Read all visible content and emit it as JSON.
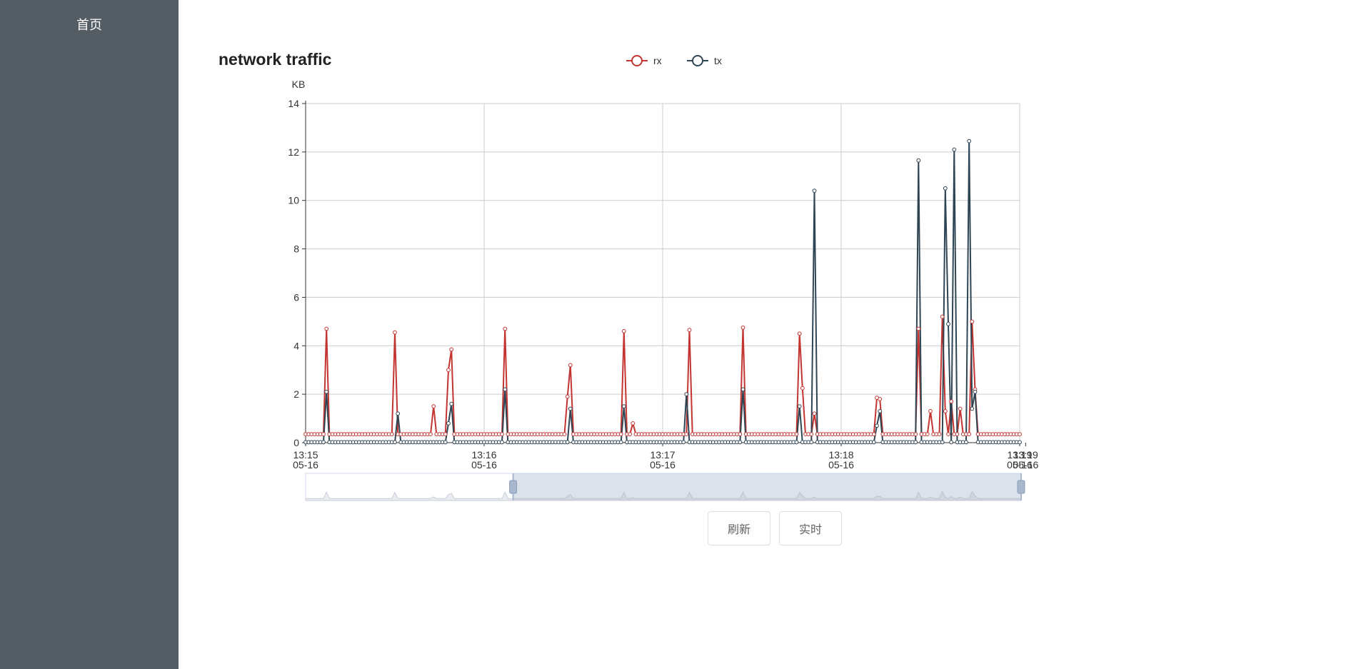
{
  "sidebar": {
    "items": [
      {
        "label": "首页"
      }
    ]
  },
  "chart_title": "network traffic",
  "buttons": {
    "refresh": "刷新",
    "realtime": "实时"
  },
  "chart_data": {
    "type": "line",
    "title": "network traffic",
    "ylabel": "KB",
    "ylim": [
      0,
      14
    ],
    "yticks": [
      0,
      2,
      4,
      6,
      8,
      10,
      12,
      14
    ],
    "xlim_seconds": [
      0,
      240
    ],
    "xticks": [
      {
        "t": 0,
        "time": "13:15",
        "date": "05-16"
      },
      {
        "t": 60,
        "time": "13:16",
        "date": "05-16"
      },
      {
        "t": 120,
        "time": "13:17",
        "date": "05-16"
      },
      {
        "t": 180,
        "time": "13:18",
        "date": "05-16"
      },
      {
        "t": 240,
        "time": "13:19",
        "date": "05-16"
      },
      {
        "t": 242,
        "time": "13:19",
        "date": "05-16"
      }
    ],
    "grid": true,
    "legend_position": "top-center",
    "series": [
      {
        "name": "rx",
        "color": "#c23531",
        "base": 0.35,
        "spikes": [
          [
            7,
            4.7
          ],
          [
            30,
            4.55
          ],
          [
            43,
            1.5
          ],
          [
            48,
            3.0
          ],
          [
            49,
            3.85
          ],
          [
            67,
            4.7
          ],
          [
            88,
            1.9
          ],
          [
            89,
            3.2
          ],
          [
            107,
            4.6
          ],
          [
            110,
            0.8
          ],
          [
            129,
            4.65
          ],
          [
            147,
            4.75
          ],
          [
            166,
            4.5
          ],
          [
            167,
            2.25
          ],
          [
            171,
            1.2
          ],
          [
            192,
            1.85
          ],
          [
            193,
            1.8
          ],
          [
            206,
            4.7
          ],
          [
            210,
            1.3
          ],
          [
            214,
            5.2
          ],
          [
            215,
            1.3
          ],
          [
            217,
            1.7
          ],
          [
            220,
            1.4
          ],
          [
            224,
            5.0
          ],
          [
            225,
            2.2
          ]
        ]
      },
      {
        "name": "tx",
        "color": "#2f4554",
        "base": 0.02,
        "spikes": [
          [
            7,
            2.1
          ],
          [
            31,
            1.2
          ],
          [
            48,
            0.8
          ],
          [
            49,
            1.6
          ],
          [
            67,
            2.2
          ],
          [
            89,
            1.4
          ],
          [
            107,
            1.5
          ],
          [
            128,
            2.0
          ],
          [
            147,
            2.2
          ],
          [
            166,
            1.5
          ],
          [
            171,
            10.4
          ],
          [
            192,
            0.7
          ],
          [
            193,
            1.3
          ],
          [
            206,
            11.65
          ],
          [
            215,
            10.5
          ],
          [
            216,
            4.9
          ],
          [
            218,
            12.1
          ],
          [
            223,
            12.45
          ],
          [
            224,
            1.4
          ],
          [
            225,
            2.1
          ]
        ]
      }
    ],
    "zoom_range_percent": [
      29,
      100
    ]
  }
}
